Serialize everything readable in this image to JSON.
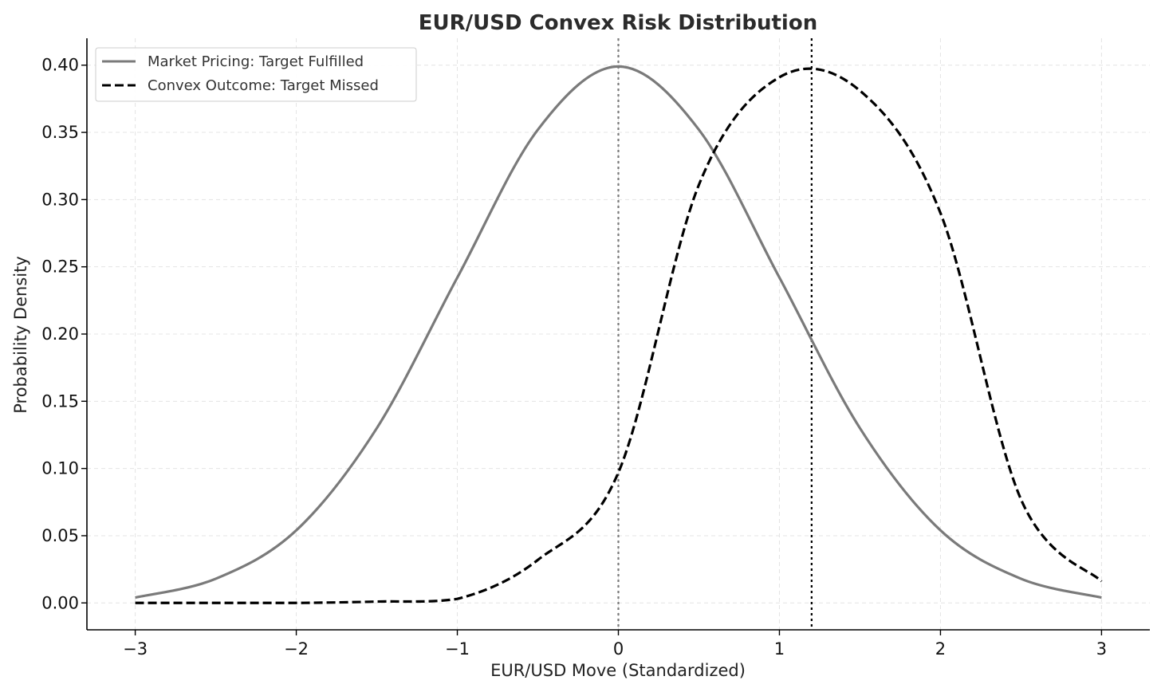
{
  "chart_data": {
    "type": "line",
    "title": "EUR/USD Convex Risk Distribution",
    "xlabel": "EUR/USD Move (Standardized)",
    "ylabel": "Probability Density",
    "xlim": [
      -3.3,
      3.3
    ],
    "ylim": [
      -0.02,
      0.42
    ],
    "x_ticks": [
      -3,
      -2,
      -1,
      0,
      1,
      2,
      3
    ],
    "x_tick_labels": [
      "−3",
      "−2",
      "−1",
      "0",
      "1",
      "2",
      "3"
    ],
    "y_ticks": [
      0.0,
      0.05,
      0.1,
      0.15,
      0.2,
      0.25,
      0.3,
      0.35,
      0.4
    ],
    "y_tick_labels": [
      "0.00",
      "0.05",
      "0.10",
      "0.15",
      "0.20",
      "0.25",
      "0.30",
      "0.35",
      "0.40"
    ],
    "grid": true,
    "legend_position": "top-left",
    "x": [
      -3.0,
      -2.5,
      -2.0,
      -1.5,
      -1.0,
      -0.5,
      0.0,
      0.5,
      1.0,
      1.5,
      2.0,
      2.5,
      3.0
    ],
    "series": [
      {
        "name": "Market Pricing: Target Fulfilled",
        "style": "solid",
        "color": "#7a7a7a",
        "values": [
          0.004,
          0.018,
          0.054,
          0.13,
          0.242,
          0.352,
          0.399,
          0.352,
          0.242,
          0.13,
          0.054,
          0.018,
          0.004
        ]
      },
      {
        "name": "Convex Outcome: Target Missed",
        "style": "dashed",
        "color": "#000000",
        "values": [
          0.0,
          0.0,
          0.0,
          0.001,
          0.003,
          0.032,
          0.097,
          0.311,
          0.391,
          0.381,
          0.29,
          0.077,
          0.016
        ]
      }
    ],
    "vlines": [
      {
        "x": 0.0,
        "style": "dotted",
        "color": "#7a7a7a"
      },
      {
        "x": 1.2,
        "style": "dotted",
        "color": "#000000"
      }
    ]
  }
}
